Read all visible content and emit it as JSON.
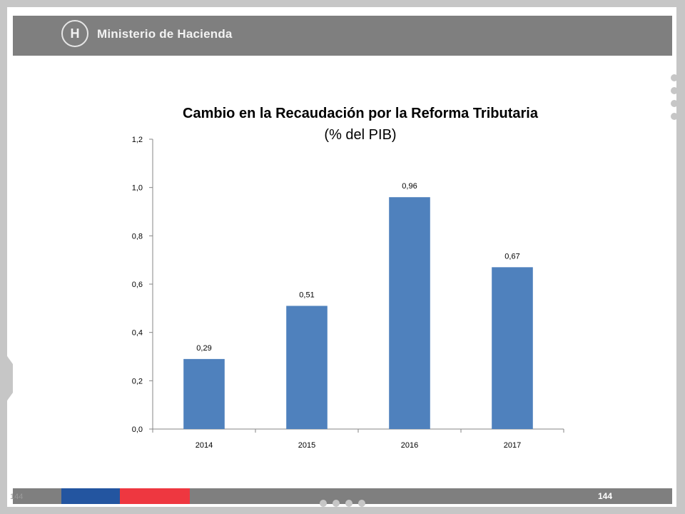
{
  "header": {
    "logo_text": "Ministerio de Hacienda",
    "logo_seal_glyph": "H"
  },
  "footer": {
    "page_number_left": "144",
    "page_number_right": "144"
  },
  "chart_data": {
    "type": "bar",
    "title": "Cambio en la Recaudación por la Reforma Tributaria",
    "subtitle": "(% del PIB)",
    "categories": [
      "2014",
      "2015",
      "2016",
      "2017"
    ],
    "values": [
      0.29,
      0.51,
      0.96,
      0.67
    ],
    "value_labels": [
      "0,29",
      "0,51",
      "0,96",
      "0,67"
    ],
    "yticks": [
      0.0,
      0.2,
      0.4,
      0.6,
      0.8,
      1.0,
      1.2
    ],
    "ytick_labels": [
      "0,0",
      "0,2",
      "0,4",
      "0,6",
      "0,8",
      "1,0",
      "1,2"
    ],
    "ylim": [
      0,
      1.2
    ],
    "xlabel": "",
    "ylabel": "",
    "grid": false,
    "bar_color": "#4f81bd"
  }
}
